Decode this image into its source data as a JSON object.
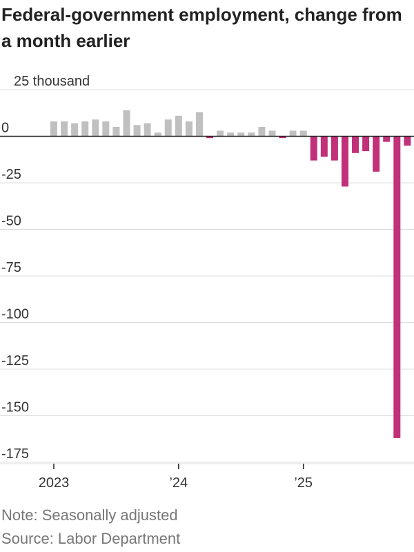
{
  "chart_data": {
    "type": "bar",
    "title": "Federal-government employment, change from a month earlier",
    "y_unit_label": "25 thousand",
    "ylim": [
      -175,
      25
    ],
    "y_ticks": [
      25,
      0,
      -25,
      -50,
      -75,
      -100,
      -125,
      -150,
      -175
    ],
    "y_tick_labels": [
      "25 thousand",
      "0",
      "-25",
      "-50",
      "-75",
      "-100",
      "-125",
      "-150",
      "-175"
    ],
    "x_tick_labels": [
      "2023",
      "’24",
      "’25"
    ],
    "grid": true,
    "colors": {
      "positive": "#c0c0c0",
      "negative": "#c2307a",
      "axis": "#222222",
      "grid": "#dddddd"
    },
    "series": [
      {
        "values": [
          8,
          8,
          7,
          8,
          9,
          8,
          5,
          14,
          6,
          7,
          2,
          9,
          11,
          8,
          13,
          -1,
          3,
          2,
          2,
          2,
          5,
          3,
          -1,
          3,
          3,
          -13,
          -11,
          -13,
          -27,
          -9,
          -8,
          -19,
          -3,
          -162,
          -5
        ]
      }
    ],
    "start_category": "2023-01",
    "year_tick_positions": [
      1,
      13,
      25
    ]
  },
  "note": "Note: Seasonally adjusted",
  "source": "Source: Labor Department"
}
